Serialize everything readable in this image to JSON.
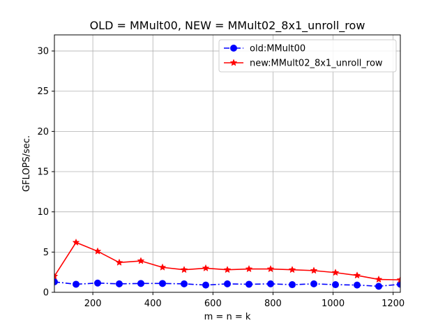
{
  "chart_data": {
    "type": "line",
    "title": "OLD = MMult00, NEW = MMult02_8x1_unroll_row",
    "xlabel": "m = n = k",
    "ylabel": "GFLOPS/sec.",
    "xlim": [
      72,
      1224
    ],
    "ylim": [
      0,
      32
    ],
    "xticks": [
      200,
      400,
      600,
      800,
      1000,
      1200
    ],
    "yticks": [
      0,
      5,
      10,
      15,
      20,
      25,
      30
    ],
    "grid": true,
    "legend_position": "top-right",
    "x": [
      72,
      144,
      216,
      288,
      360,
      432,
      504,
      576,
      648,
      720,
      792,
      864,
      936,
      1008,
      1080,
      1152,
      1224
    ],
    "series": [
      {
        "name": "old:MMult00",
        "color": "#0000ff",
        "marker": "circle",
        "linestyle": "dashdot",
        "values": [
          1.3,
          1.0,
          1.15,
          1.05,
          1.1,
          1.1,
          1.05,
          0.9,
          1.05,
          1.0,
          1.05,
          0.95,
          1.05,
          0.95,
          0.9,
          0.75,
          1.0
        ]
      },
      {
        "name": "new:MMult02_8x1_unroll_row",
        "color": "#ff0000",
        "marker": "star",
        "linestyle": "solid",
        "values": [
          2.0,
          6.2,
          5.1,
          3.7,
          3.9,
          3.1,
          2.8,
          3.0,
          2.8,
          2.9,
          2.9,
          2.8,
          2.7,
          2.45,
          2.1,
          1.6,
          1.55
        ]
      }
    ]
  }
}
